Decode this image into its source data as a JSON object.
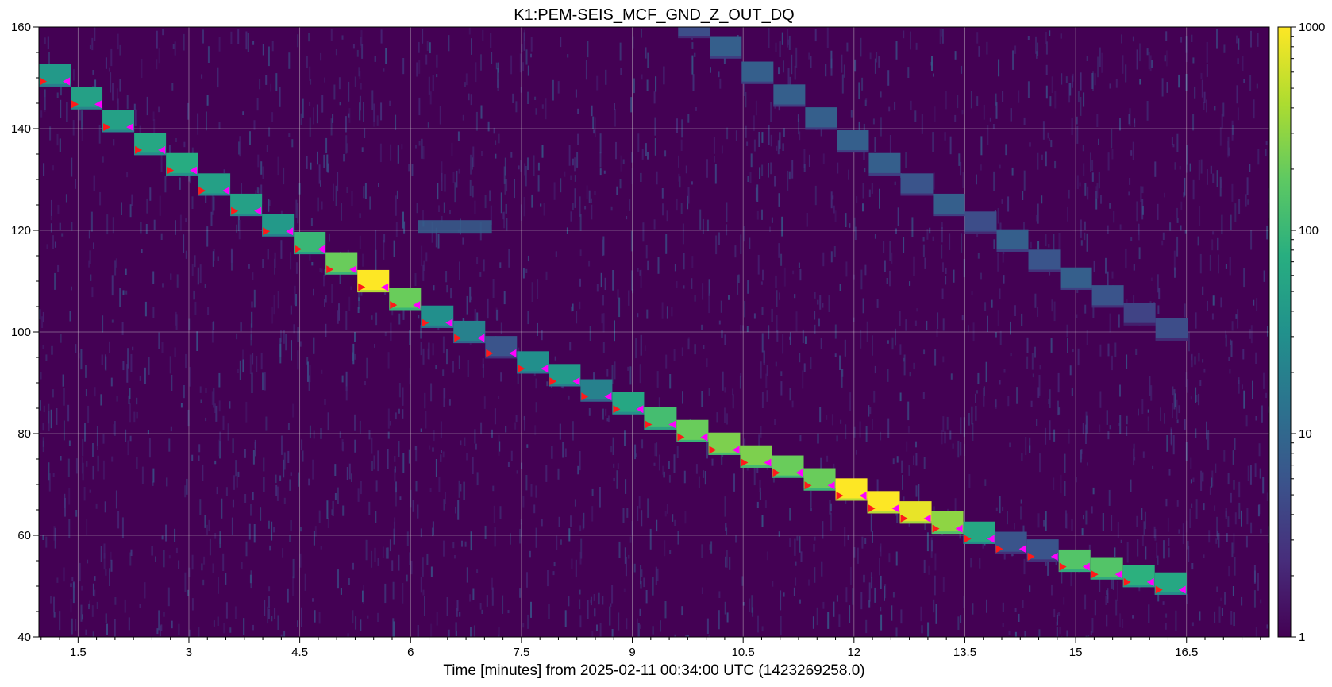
{
  "chart_data": {
    "type": "heatmap",
    "title": "K1:PEM-SEIS_MCF_GND_Z_OUT_DQ",
    "xlabel": "Time [minutes] from 2025-02-11 00:34:00 UTC (1423269258.0)",
    "ylabel": "",
    "xlim": [
      0.97,
      17.62
    ],
    "ylim": [
      40,
      160
    ],
    "x_ticks": [
      "1.5",
      "3",
      "4.5",
      "6",
      "7.5",
      "9",
      "10.5",
      "12",
      "13.5",
      "15",
      "16.5"
    ],
    "y_ticks": [
      "40",
      "60",
      "80",
      "100",
      "120",
      "140",
      "160"
    ],
    "grid": true,
    "colorbar": {
      "scale": "log",
      "range": [
        1,
        1000
      ],
      "ticks": [
        "1",
        "10",
        "100",
        "1000"
      ],
      "colormap": "viridis"
    },
    "colors": {
      "background": "#440154",
      "start_marker": "#ff1a1a",
      "end_marker": "#ff00ff"
    },
    "main_tone_steps": [
      {
        "start": 0.97,
        "end": 1.4,
        "freq": 150.5,
        "power": 40
      },
      {
        "start": 1.4,
        "end": 1.83,
        "freq": 146.0,
        "power": 50
      },
      {
        "start": 1.83,
        "end": 2.26,
        "freq": 141.5,
        "power": 50
      },
      {
        "start": 2.26,
        "end": 2.69,
        "freq": 137.0,
        "power": 60
      },
      {
        "start": 2.69,
        "end": 3.12,
        "freq": 133.0,
        "power": 70
      },
      {
        "start": 3.12,
        "end": 3.56,
        "freq": 129.0,
        "power": 50
      },
      {
        "start": 3.56,
        "end": 3.99,
        "freq": 125.0,
        "power": 50
      },
      {
        "start": 3.99,
        "end": 4.42,
        "freq": 121.0,
        "power": 40
      },
      {
        "start": 4.42,
        "end": 4.85,
        "freq": 117.5,
        "power": 100
      },
      {
        "start": 4.85,
        "end": 5.28,
        "freq": 113.5,
        "power": 200
      },
      {
        "start": 5.28,
        "end": 5.71,
        "freq": 110.0,
        "power": 1000
      },
      {
        "start": 5.71,
        "end": 6.14,
        "freq": 106.5,
        "power": 200
      },
      {
        "start": 6.14,
        "end": 6.58,
        "freq": 103.0,
        "power": 30
      },
      {
        "start": 6.58,
        "end": 7.01,
        "freq": 100.0,
        "power": 20
      },
      {
        "start": 7.01,
        "end": 7.44,
        "freq": 97.0,
        "power": 6
      },
      {
        "start": 7.44,
        "end": 7.87,
        "freq": 94.0,
        "power": 30
      },
      {
        "start": 7.87,
        "end": 8.3,
        "freq": 91.5,
        "power": 40
      },
      {
        "start": 8.3,
        "end": 8.73,
        "freq": 88.5,
        "power": 20
      },
      {
        "start": 8.73,
        "end": 9.16,
        "freq": 86.0,
        "power": 60
      },
      {
        "start": 9.16,
        "end": 9.6,
        "freq": 83.0,
        "power": 120
      },
      {
        "start": 9.6,
        "end": 10.03,
        "freq": 80.5,
        "power": 200
      },
      {
        "start": 10.03,
        "end": 10.46,
        "freq": 78.0,
        "power": 250
      },
      {
        "start": 10.46,
        "end": 10.89,
        "freq": 75.5,
        "power": 250
      },
      {
        "start": 10.89,
        "end": 11.32,
        "freq": 73.5,
        "power": 200
      },
      {
        "start": 11.32,
        "end": 11.75,
        "freq": 71.0,
        "power": 200
      },
      {
        "start": 11.75,
        "end": 12.18,
        "freq": 69.0,
        "power": 1000
      },
      {
        "start": 12.18,
        "end": 12.62,
        "freq": 66.5,
        "power": 1000
      },
      {
        "start": 12.62,
        "end": 13.05,
        "freq": 64.5,
        "power": 800
      },
      {
        "start": 13.05,
        "end": 13.48,
        "freq": 62.5,
        "power": 300
      },
      {
        "start": 13.48,
        "end": 13.91,
        "freq": 60.5,
        "power": 60
      },
      {
        "start": 13.91,
        "end": 14.34,
        "freq": 58.5,
        "power": 6
      },
      {
        "start": 14.34,
        "end": 14.77,
        "freq": 57.0,
        "power": 6
      },
      {
        "start": 14.77,
        "end": 15.2,
        "freq": 55.0,
        "power": 150
      },
      {
        "start": 15.2,
        "end": 15.64,
        "freq": 53.5,
        "power": 150
      },
      {
        "start": 15.64,
        "end": 16.07,
        "freq": 52.0,
        "power": 80
      },
      {
        "start": 16.07,
        "end": 16.5,
        "freq": 50.5,
        "power": 60
      }
    ],
    "secondary_tone_steps": [
      {
        "start": 9.62,
        "end": 10.05,
        "freq": 160.0,
        "power": 5
      },
      {
        "start": 10.05,
        "end": 10.48,
        "freq": 156.0,
        "power": 8
      },
      {
        "start": 10.48,
        "end": 10.91,
        "freq": 151.0,
        "power": 8
      },
      {
        "start": 10.91,
        "end": 11.34,
        "freq": 146.5,
        "power": 8
      },
      {
        "start": 11.34,
        "end": 11.77,
        "freq": 142.0,
        "power": 8
      },
      {
        "start": 11.77,
        "end": 12.2,
        "freq": 137.5,
        "power": 8
      },
      {
        "start": 12.2,
        "end": 12.63,
        "freq": 133.0,
        "power": 8
      },
      {
        "start": 12.63,
        "end": 13.07,
        "freq": 129.0,
        "power": 6
      },
      {
        "start": 13.07,
        "end": 13.5,
        "freq": 125.0,
        "power": 8
      },
      {
        "start": 13.5,
        "end": 13.93,
        "freq": 121.5,
        "power": 5
      },
      {
        "start": 13.93,
        "end": 14.36,
        "freq": 118.0,
        "power": 8
      },
      {
        "start": 14.36,
        "end": 14.79,
        "freq": 114.0,
        "power": 6
      },
      {
        "start": 14.79,
        "end": 15.22,
        "freq": 110.5,
        "power": 8
      },
      {
        "start": 15.22,
        "end": 15.65,
        "freq": 107.0,
        "power": 6
      },
      {
        "start": 15.65,
        "end": 16.08,
        "freq": 103.5,
        "power": 4
      },
      {
        "start": 16.08,
        "end": 16.52,
        "freq": 100.5,
        "power": 5
      }
    ],
    "other_features": [
      {
        "start": 6.1,
        "end": 7.1,
        "freq_low": 119.5,
        "freq_high": 122.0,
        "power": 8
      }
    ]
  }
}
